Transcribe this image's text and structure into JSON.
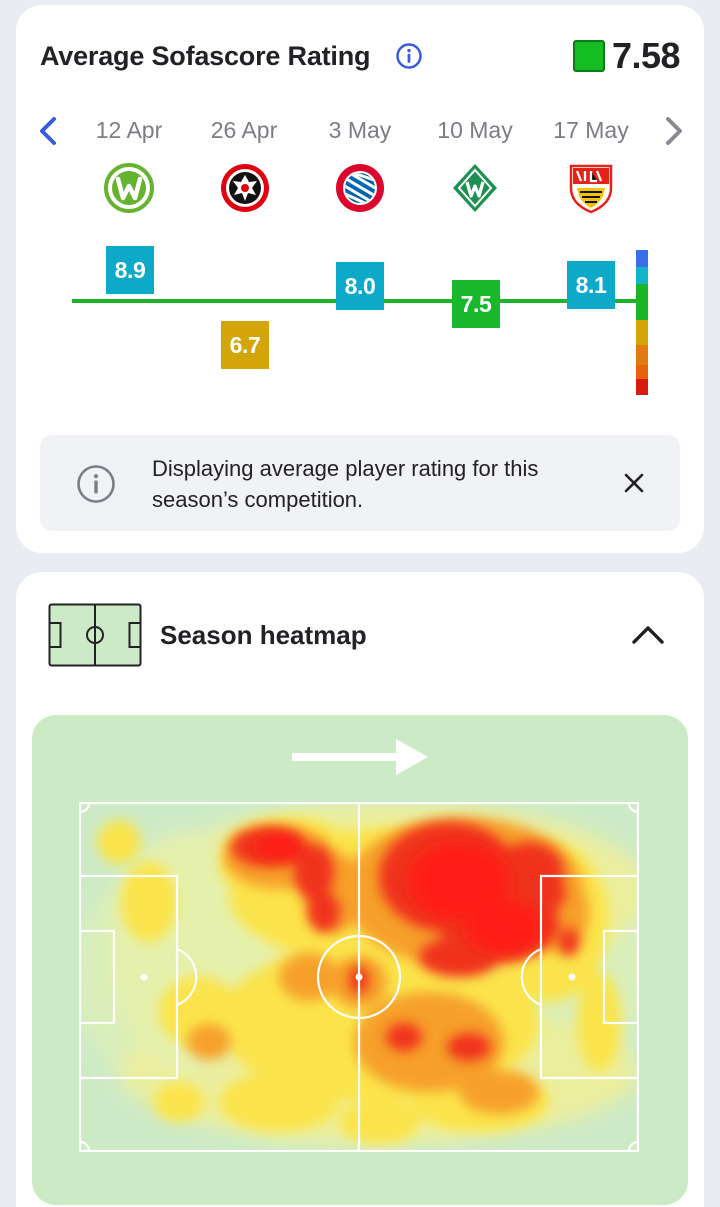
{
  "rating_card": {
    "title": "Average Sofascore Rating",
    "average_rating": "7.58",
    "average_color": "#13bd22",
    "icons": {
      "info": "info-icon",
      "prev": "chevron-left-icon",
      "next": "chevron-right-icon"
    },
    "matches": [
      {
        "date": "12 Apr",
        "crest": "wolfsburg-crest",
        "rating": "8.9",
        "color": "#0ca9c8"
      },
      {
        "date": "26 Apr",
        "crest": "eintracht-frankfurt-crest",
        "rating": "6.7",
        "color": "#d4a50a"
      },
      {
        "date": "3 May",
        "crest": "bayern-munchen-crest",
        "rating": "8.0",
        "color": "#0ca9c8"
      },
      {
        "date": "10 May",
        "crest": "werder-bremen-crest",
        "rating": "7.5",
        "color": "#18b72c"
      },
      {
        "date": "17 May",
        "crest": "vfb-stuttgart-crest",
        "rating": "8.1",
        "color": "#0ca9c8"
      }
    ],
    "rating_scale_colors": [
      "#3a6ee8",
      "#12b4c9",
      "#1bb52a",
      "#1bb52a",
      "#d4a50a",
      "#e07b12",
      "#d91a0f"
    ],
    "notice": {
      "text": "Displaying average player rating for this season’s competition.",
      "icon": "info-circle-icon",
      "close_icon": "close-icon"
    }
  },
  "heatmap_card": {
    "title": "Season heatmap",
    "icon": "pitch-icon",
    "collapse_icon": "chevron-up-icon",
    "direction_icon": "arrow-right-icon"
  }
}
